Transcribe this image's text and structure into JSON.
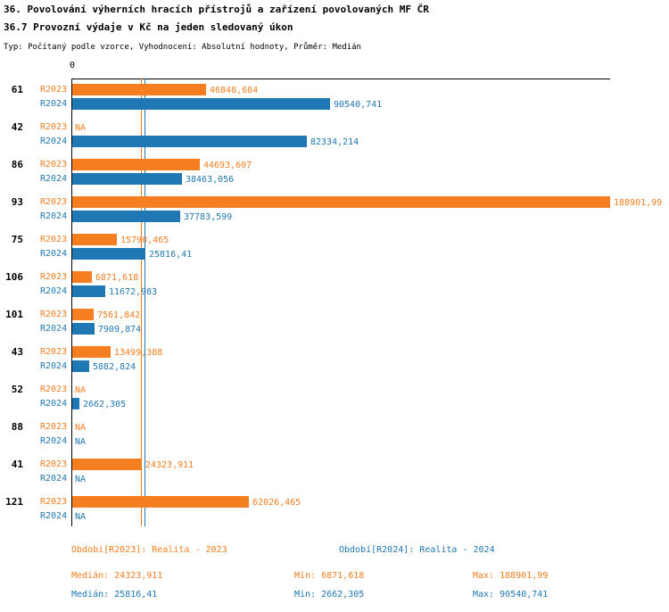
{
  "title_line1": "36. Povolování výherních hracích přístrojů a zařízení povolovaných MF ČR",
  "title_line2": "36.7 Provozní výdaje v Kč na jeden sledovaný úkon",
  "subtitle": "Typ: Počítaný podle vzorce, Vyhodnocení: Absolutní hodnoty, Průměr: Medián",
  "colors": {
    "r2023": "#F57E20",
    "r2024": "#1F77B4",
    "axis": "#000000"
  },
  "chart_data": {
    "type": "bar",
    "orientation": "horizontal",
    "x_axis": {
      "origin_label": "0",
      "max_value": 188901.99
    },
    "grid": false,
    "legend_position": "bottom",
    "series_labels": {
      "r2023": "R2023",
      "r2024": "R2024"
    },
    "categories": [
      "61",
      "42",
      "86",
      "93",
      "75",
      "106",
      "101",
      "43",
      "52",
      "88",
      "41",
      "121"
    ],
    "rows": [
      {
        "category": "61",
        "r2023": 46848.684,
        "r2023_label": "46848,684",
        "r2024": 90540.741,
        "r2024_label": "90540,741"
      },
      {
        "category": "42",
        "r2023": null,
        "r2023_label": "NA",
        "r2024": 82334.214,
        "r2024_label": "82334,214"
      },
      {
        "category": "86",
        "r2023": 44693.607,
        "r2023_label": "44693,607",
        "r2024": 38463.056,
        "r2024_label": "38463,056"
      },
      {
        "category": "93",
        "r2023": 188901.99,
        "r2023_label": "188901,99",
        "r2024": 37783.599,
        "r2024_label": "37783,599"
      },
      {
        "category": "75",
        "r2023": 15790.465,
        "r2023_label": "15790,465",
        "r2024": 25816.41,
        "r2024_label": "25816,41"
      },
      {
        "category": "106",
        "r2023": 6871.618,
        "r2023_label": "6871,618",
        "r2024": 11672.983,
        "r2024_label": "11672,983"
      },
      {
        "category": "101",
        "r2023": 7561.842,
        "r2023_label": "7561,842",
        "r2024": 7909.874,
        "r2024_label": "7909,874"
      },
      {
        "category": "43",
        "r2023": 13499.388,
        "r2023_label": "13499,388",
        "r2024": 5882.824,
        "r2024_label": "5882,824"
      },
      {
        "category": "52",
        "r2023": null,
        "r2023_label": "NA",
        "r2024": 2662.305,
        "r2024_label": "2662,305"
      },
      {
        "category": "88",
        "r2023": null,
        "r2023_label": "NA",
        "r2024": null,
        "r2024_label": "NA"
      },
      {
        "category": "41",
        "r2023": 24323.911,
        "r2023_label": "24323,911",
        "r2024": null,
        "r2024_label": "NA"
      },
      {
        "category": "121",
        "r2023": 62026.465,
        "r2023_label": "62026,465",
        "r2024": null,
        "r2024_label": "NA"
      }
    ],
    "medians": {
      "r2023": 24323.911,
      "r2024": 25816.41
    }
  },
  "legend": {
    "r2023": "Období[R2023]: Realita - 2023",
    "r2024": "Období[R2024]: Realita - 2024"
  },
  "stats": {
    "r2023": {
      "median": "Medián: 24323,911",
      "min": "Min: 6871,618",
      "max": "Max: 188901,99"
    },
    "r2024": {
      "median": "Medián: 25816,41",
      "min": "Min: 2662,305",
      "max": "Max: 90540,741"
    }
  }
}
